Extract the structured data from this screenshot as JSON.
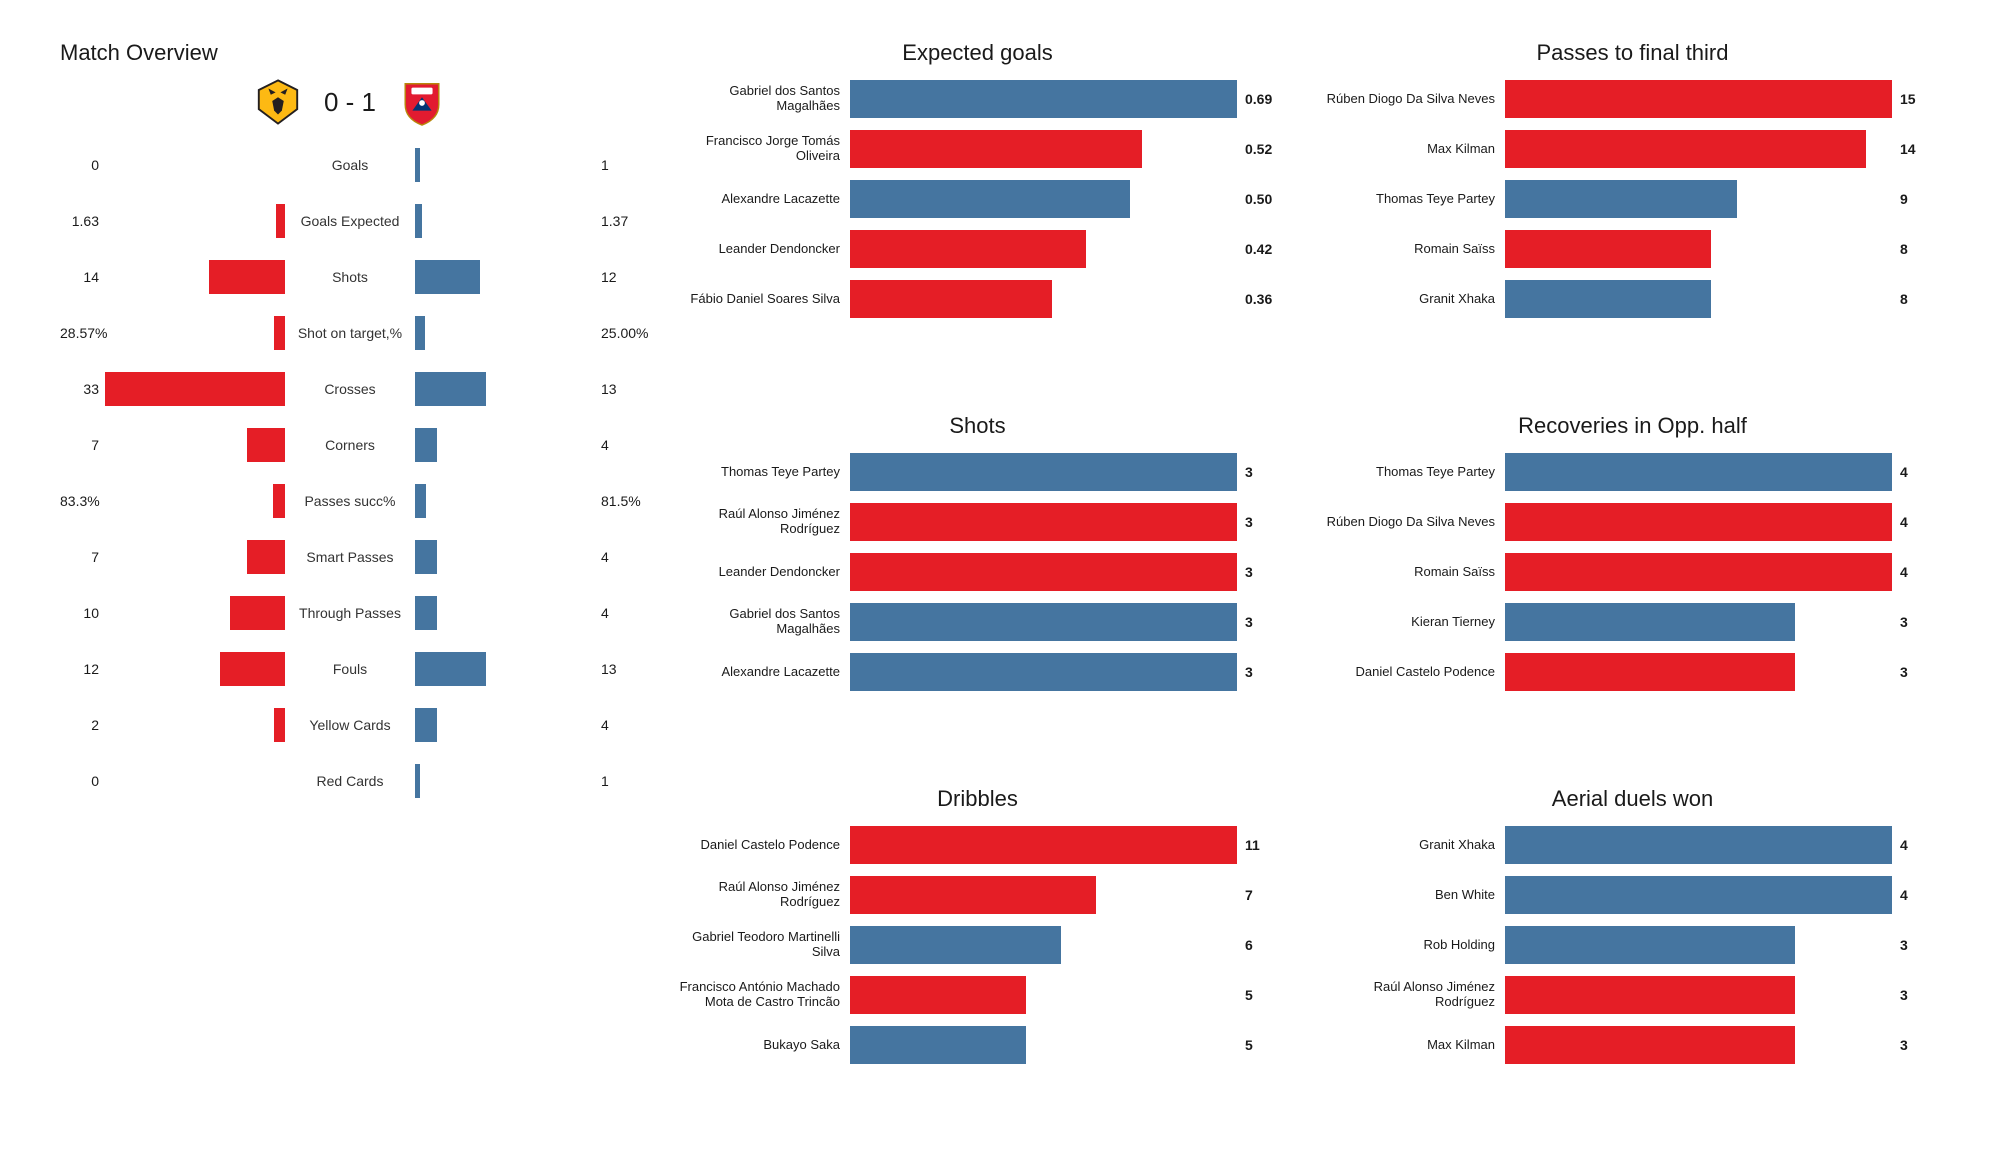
{
  "colors": {
    "home": "#e51e26",
    "away": "#4575a0",
    "text": "#1a1a1a",
    "bg": "#ffffff"
  },
  "overview": {
    "title": "Match Overview",
    "score": "0 - 1",
    "home_badge": {
      "name": "wolves-badge",
      "bg": "#fdb913",
      "fg": "#231f20"
    },
    "away_badge": {
      "name": "arsenal-badge",
      "bg": "#e21b30",
      "fg": "#ffffff"
    },
    "max_scale": 33,
    "rows": [
      {
        "label": "Goals",
        "home": "0",
        "away": "1",
        "home_n": 0,
        "away_n": 1
      },
      {
        "label": "Goals Expected",
        "home": "1.63",
        "away": "1.37",
        "home_n": 1.63,
        "away_n": 1.37
      },
      {
        "label": "Shots",
        "home": "14",
        "away": "12",
        "home_n": 14,
        "away_n": 12
      },
      {
        "label": "Shot on target,%",
        "home": "28.57%",
        "away": "25.00%",
        "home_n": 2.0,
        "away_n": 1.8
      },
      {
        "label": "Crosses",
        "home": "33",
        "away": "13",
        "home_n": 33,
        "away_n": 13
      },
      {
        "label": "Corners",
        "home": "7",
        "away": "4",
        "home_n": 7,
        "away_n": 4
      },
      {
        "label": "Passes succ%",
        "home": "83.3%",
        "away": "81.5%",
        "home_n": 2.2,
        "away_n": 2.0
      },
      {
        "label": "Smart Passes",
        "home": "7",
        "away": "4",
        "home_n": 7,
        "away_n": 4
      },
      {
        "label": "Through Passes",
        "home": "10",
        "away": "4",
        "home_n": 10,
        "away_n": 4
      },
      {
        "label": "Fouls",
        "home": "12",
        "away": "13",
        "home_n": 12,
        "away_n": 13
      },
      {
        "label": "Yellow Cards",
        "home": "2",
        "away": "4",
        "home_n": 2,
        "away_n": 4
      },
      {
        "label": "Red Cards",
        "home": "0",
        "away": "1",
        "home_n": 0,
        "away_n": 1
      }
    ]
  },
  "charts": [
    {
      "title": "Expected goals",
      "max": 0.69,
      "rows": [
        {
          "label": "Gabriel dos Santos Magalhães",
          "val": "0.69",
          "n": 0.69,
          "team": "away"
        },
        {
          "label": "Francisco Jorge Tomás Oliveira",
          "val": "0.52",
          "n": 0.52,
          "team": "home"
        },
        {
          "label": "Alexandre Lacazette",
          "val": "0.50",
          "n": 0.5,
          "team": "away"
        },
        {
          "label": "Leander Dendoncker",
          "val": "0.42",
          "n": 0.42,
          "team": "home"
        },
        {
          "label": "Fábio Daniel Soares Silva",
          "val": "0.36",
          "n": 0.36,
          "team": "home"
        }
      ]
    },
    {
      "title": "Passes to final third",
      "max": 15,
      "rows": [
        {
          "label": "Rúben Diogo Da Silva Neves",
          "val": "15",
          "n": 15,
          "team": "home"
        },
        {
          "label": "Max Kilman",
          "val": "14",
          "n": 14,
          "team": "home"
        },
        {
          "label": "Thomas Teye Partey",
          "val": "9",
          "n": 9,
          "team": "away"
        },
        {
          "label": "Romain Saïss",
          "val": "8",
          "n": 8,
          "team": "home"
        },
        {
          "label": "Granit Xhaka",
          "val": "8",
          "n": 8,
          "team": "away"
        }
      ]
    },
    {
      "title": "Shots",
      "max": 3,
      "rows": [
        {
          "label": "Thomas Teye Partey",
          "val": "3",
          "n": 3,
          "team": "away"
        },
        {
          "label": "Raúl Alonso Jiménez Rodríguez",
          "val": "3",
          "n": 3,
          "team": "home"
        },
        {
          "label": "Leander Dendoncker",
          "val": "3",
          "n": 3,
          "team": "home"
        },
        {
          "label": "Gabriel dos Santos Magalhães",
          "val": "3",
          "n": 3,
          "team": "away"
        },
        {
          "label": "Alexandre Lacazette",
          "val": "3",
          "n": 3,
          "team": "away"
        }
      ]
    },
    {
      "title": "Recoveries in Opp. half",
      "max": 4,
      "rows": [
        {
          "label": "Thomas Teye Partey",
          "val": "4",
          "n": 4,
          "team": "away"
        },
        {
          "label": "Rúben Diogo Da Silva Neves",
          "val": "4",
          "n": 4,
          "team": "home"
        },
        {
          "label": "Romain Saïss",
          "val": "4",
          "n": 4,
          "team": "home"
        },
        {
          "label": "Kieran Tierney",
          "val": "3",
          "n": 3,
          "team": "away"
        },
        {
          "label": "Daniel Castelo Podence",
          "val": "3",
          "n": 3,
          "team": "home"
        }
      ]
    },
    {
      "title": "Dribbles",
      "max": 11,
      "rows": [
        {
          "label": "Daniel Castelo Podence",
          "val": "11",
          "n": 11,
          "team": "home"
        },
        {
          "label": "Raúl Alonso Jiménez Rodríguez",
          "val": "7",
          "n": 7,
          "team": "home"
        },
        {
          "label": "Gabriel Teodoro Martinelli Silva",
          "val": "6",
          "n": 6,
          "team": "away"
        },
        {
          "label": "Francisco António Machado Mota de Castro Trincão",
          "val": "5",
          "n": 5,
          "team": "home"
        },
        {
          "label": "Bukayo Saka",
          "val": "5",
          "n": 5,
          "team": "away"
        }
      ]
    },
    {
      "title": "Aerial duels won",
      "max": 4,
      "rows": [
        {
          "label": "Granit Xhaka",
          "val": "4",
          "n": 4,
          "team": "away"
        },
        {
          "label": "Ben White",
          "val": "4",
          "n": 4,
          "team": "away"
        },
        {
          "label": "Rob Holding",
          "val": "3",
          "n": 3,
          "team": "away"
        },
        {
          "label": "Raúl Alonso Jiménez Rodríguez",
          "val": "3",
          "n": 3,
          "team": "home"
        },
        {
          "label": "Max Kilman",
          "val": "3",
          "n": 3,
          "team": "home"
        }
      ]
    }
  ]
}
